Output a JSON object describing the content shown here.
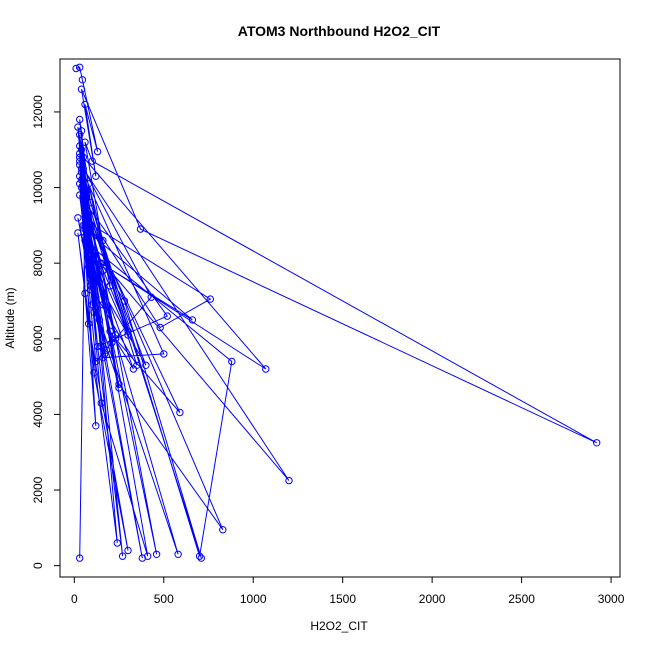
{
  "chart_data": {
    "type": "line",
    "title": "ATOM3 Northbound H2O2_CIT",
    "xlabel": "H2O2_CIT",
    "ylabel": "Altitude (m)",
    "xlim": [
      -80,
      3050
    ],
    "ylim": [
      -300,
      13400
    ],
    "xticks": [
      0,
      500,
      1000,
      1500,
      2000,
      2500,
      3000
    ],
    "yticks": [
      0,
      2000,
      4000,
      6000,
      8000,
      10000,
      12000
    ],
    "grid": false,
    "marker": "open-circle",
    "color": "#0000ff",
    "series": [
      {
        "x": [
          10,
          30,
          45,
          130,
          60,
          120,
          40,
          370,
          2920,
          100,
          60,
          200,
          80,
          160,
          70,
          30,
          90,
          50,
          1200,
          110,
          230,
          60,
          90,
          40,
          160,
          70,
          120,
          50,
          1070,
          150,
          60,
          140,
          80,
          20,
          90,
          30,
          300,
          60,
          210,
          100,
          50,
          400,
          80,
          30,
          120,
          580,
          140,
          60,
          590,
          230,
          70,
          760,
          480,
          60,
          110,
          40,
          700,
          880,
          80,
          300,
          40,
          130,
          520,
          60,
          250,
          30,
          170,
          60,
          660,
          80,
          30,
          430,
          120,
          50,
          150,
          90,
          30,
          710,
          280,
          60,
          330,
          200,
          40,
          350,
          90,
          30,
          830,
          250,
          100,
          40,
          500,
          160,
          30,
          270,
          60,
          380,
          20,
          180,
          50,
          410,
          150,
          30,
          120,
          60,
          40,
          240,
          20,
          80,
          300,
          110,
          30,
          460,
          160,
          60,
          30
        ],
        "y": [
          13150,
          13180,
          12850,
          10950,
          12200,
          10300,
          12600,
          8900,
          3250,
          10700,
          11200,
          7400,
          10100,
          8600,
          9900,
          11800,
          9600,
          10500,
          2250,
          8300,
          6100,
          9800,
          7700,
          11000,
          6900,
          9200,
          7100,
          10800,
          5200,
          8000,
          9500,
          6500,
          8800,
          11600,
          7300,
          10600,
          6200,
          9000,
          5900,
          8100,
          9700,
          5300,
          7900,
          10900,
          6800,
          300,
          7500,
          9300,
          4050,
          6000,
          9100,
          7050,
          6300,
          9400,
          6700,
          10400,
          250,
          5400,
          8500,
          6100,
          10200,
          5800,
          6600,
          9600,
          4700,
          11100,
          5600,
          8900,
          6500,
          8200,
          10700,
          7100,
          5400,
          9000,
          5800,
          7600,
          10300,
          200,
          7000,
          8700,
          5200,
          6200,
          10000,
          5300,
          7400,
          9800,
          950,
          4800,
          6900,
          10500,
          5600,
          5500,
          11400,
          250,
          8600,
          200,
          9200,
          5700,
          9900,
          250,
          4300,
          10800,
          3700,
          7200,
          11500,
          600,
          8800,
          6400,
          400,
          5100,
          10100,
          300,
          7800,
          9400,
          200
        ]
      }
    ]
  }
}
